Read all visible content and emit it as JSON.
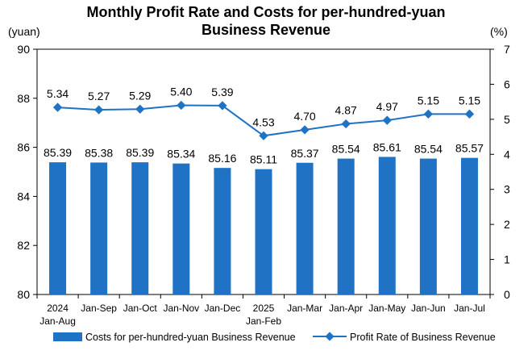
{
  "chart_data": {
    "type": "bar+line",
    "title_line1": "Monthly Profit Rate and Costs for per-hundred-yuan",
    "title_line2": "Business Revenue",
    "left_unit": "(yuan)",
    "right_unit": "(%)",
    "categories": [
      [
        "2024",
        "Jan-Aug"
      ],
      [
        "Jan-Sep"
      ],
      [
        "Jan-Oct"
      ],
      [
        "Jan-Nov"
      ],
      [
        "Jan-Dec"
      ],
      [
        "2025",
        "Jan-Feb"
      ],
      [
        "Jan-Mar"
      ],
      [
        "Jan-Apr"
      ],
      [
        "Jan-May"
      ],
      [
        "Jan-Jun"
      ],
      [
        "Jan-Jul"
      ]
    ],
    "left_axis": {
      "min": 80,
      "max": 90,
      "ticks": [
        80,
        82,
        84,
        86,
        88,
        90
      ]
    },
    "right_axis": {
      "min": 0,
      "max": 7,
      "ticks": [
        0,
        1,
        2,
        3,
        4,
        5,
        6,
        7
      ]
    },
    "series": [
      {
        "name": "Costs for per-hundred-yuan Business Revenue",
        "type": "bar",
        "axis": "left",
        "color": "#1f72c4",
        "values": [
          85.39,
          85.38,
          85.39,
          85.34,
          85.16,
          85.11,
          85.37,
          85.54,
          85.61,
          85.54,
          85.57
        ],
        "labels": [
          "85.39",
          "85.38",
          "85.39",
          "85.34",
          "85.16",
          "85.11",
          "85.37",
          "85.54",
          "85.61",
          "85.54",
          "85.57"
        ]
      },
      {
        "name": "Profit Rate of Business Revenue",
        "type": "line",
        "axis": "right",
        "color": "#1f72c4",
        "values": [
          5.34,
          5.27,
          5.29,
          5.4,
          5.39,
          4.53,
          4.7,
          4.87,
          4.97,
          5.15,
          5.15
        ],
        "labels": [
          "5.34",
          "5.27",
          "5.29",
          "5.40",
          "5.39",
          "4.53",
          "4.70",
          "4.87",
          "4.97",
          "5.15",
          "5.15"
        ]
      }
    ],
    "legend_position": "bottom",
    "grid": false
  }
}
